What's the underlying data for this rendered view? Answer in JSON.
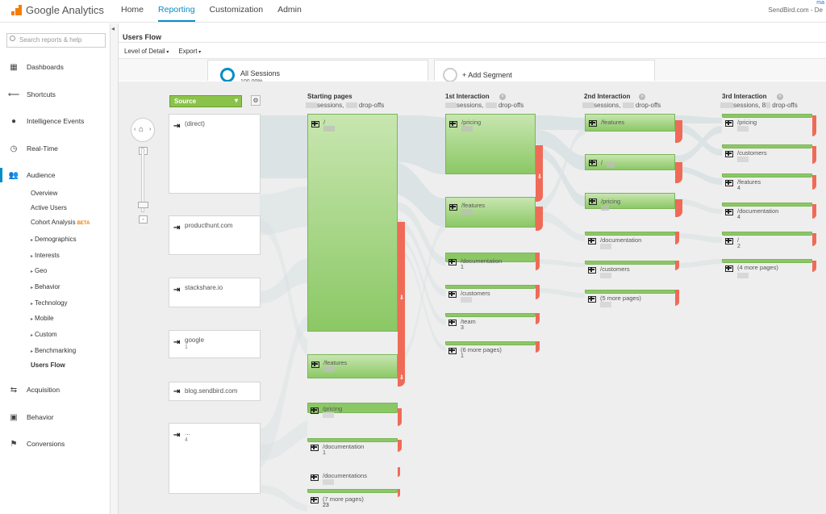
{
  "app": {
    "title": "Google Analytics"
  },
  "topnav": [
    {
      "label": "Home"
    },
    {
      "label": "Reporting"
    },
    {
      "label": "Customization"
    },
    {
      "label": "Admin"
    }
  ],
  "account": {
    "name": "SendBird.com - De",
    "link": "ma"
  },
  "search": {
    "placeholder": "Search reports & help"
  },
  "sidebar": {
    "items": [
      {
        "label": "Dashboards",
        "icon": "grid-icon"
      },
      {
        "label": "Shortcuts",
        "icon": "shortcut-arrow-icon"
      },
      {
        "label": "Intelligence Events",
        "icon": "bulb-icon"
      },
      {
        "label": "Real-Time",
        "icon": "clock-icon"
      },
      {
        "label": "Audience",
        "icon": "people-icon"
      },
      {
        "label": "Acquisition",
        "icon": "acquisition-arrows-icon"
      },
      {
        "label": "Behavior",
        "icon": "behavior-page-icon"
      },
      {
        "label": "Conversions",
        "icon": "flag-icon"
      }
    ],
    "audience_sub": [
      {
        "label": "Overview"
      },
      {
        "label": "Active Users"
      },
      {
        "label": "Cohort Analysis",
        "badge": "BETA"
      },
      {
        "label": "Demographics"
      },
      {
        "label": "Interests"
      },
      {
        "label": "Geo"
      },
      {
        "label": "Behavior"
      },
      {
        "label": "Technology"
      },
      {
        "label": "Mobile"
      },
      {
        "label": "Custom"
      },
      {
        "label": "Benchmarking"
      },
      {
        "label": "Users Flow"
      }
    ]
  },
  "page": {
    "title": "Users Flow"
  },
  "toolbar": {
    "level_of_detail": "Level of Detail",
    "export": "Export"
  },
  "segments": [
    {
      "name": "All Sessions",
      "pct": "100.00%"
    },
    {
      "name": "+ Add Segment"
    }
  ],
  "flow": {
    "dimension_dropdown": "Source",
    "columns": [
      {
        "title": "Starting pages",
        "sub_a": "sessions,",
        "sub_b": "drop-offs"
      },
      {
        "title": "1st Interaction",
        "sub_a": "sessions,",
        "sub_b": "drop-offs"
      },
      {
        "title": "2nd Interaction",
        "sub_a": "sessions,",
        "sub_b": "drop-offs"
      },
      {
        "title": "3rd Interaction",
        "sub_a": "sessions,",
        "sub_b": "drop-offs",
        "sub_prefix": "8"
      }
    ],
    "sources": [
      {
        "label": "(direct)",
        "value": ""
      },
      {
        "label": "producthunt.com",
        "value": ""
      },
      {
        "label": "stackshare.io",
        "value": ""
      },
      {
        "label": "google",
        "value": "1"
      },
      {
        "label": "blog.sendbird.com",
        "value": ""
      },
      {
        "label": "...",
        "value": "4"
      }
    ],
    "starting_pages": [
      {
        "label": "/",
        "value": ""
      },
      {
        "label": "/features",
        "value": ""
      },
      {
        "label": "/pricing",
        "value": ""
      },
      {
        "label": "/documentation",
        "value": "1"
      },
      {
        "label": "/documentations",
        "value": ""
      },
      {
        "label": "(7 more pages)",
        "value": "23"
      }
    ],
    "first_interaction": [
      {
        "label": "/pricing",
        "value": ""
      },
      {
        "label": "/features",
        "value": ""
      },
      {
        "label": "/documentation",
        "value": "1"
      },
      {
        "label": "/customers",
        "value": ""
      },
      {
        "label": "/team",
        "value": "3"
      },
      {
        "label": "(6 more pages)",
        "value": "1"
      }
    ],
    "second_interaction": [
      {
        "label": "/features",
        "value": ""
      },
      {
        "label": "/",
        "value": ""
      },
      {
        "label": "/pricing",
        "value": ""
      },
      {
        "label": "/documentation",
        "value": ""
      },
      {
        "label": "/customers",
        "value": ""
      },
      {
        "label": "(5 more pages)",
        "value": ""
      }
    ],
    "third_interaction": [
      {
        "label": "/pricing",
        "value": ""
      },
      {
        "label": "/customers",
        "value": ""
      },
      {
        "label": "/features",
        "value": "4"
      },
      {
        "label": "/documentation",
        "value": "4"
      },
      {
        "label": "/",
        "value": "2"
      },
      {
        "label": "(4 more pages)",
        "value": ""
      }
    ]
  }
}
